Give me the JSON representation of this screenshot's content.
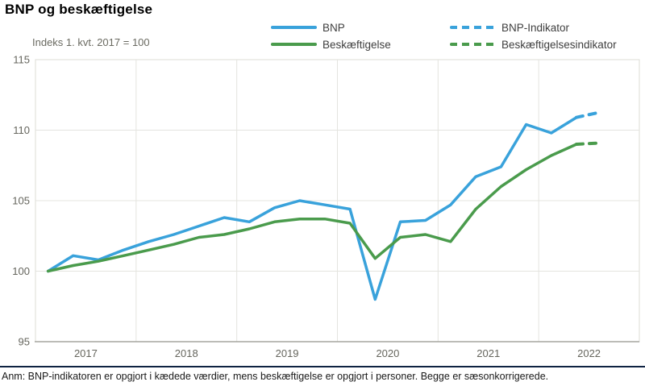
{
  "page": {
    "title": "BNP og beskæftigelse",
    "footnote": "Anm: BNP-indikatoren er opgjort i kædede værdier, mens beskæftigelse er opgjort i personer. Begge er sæsonkorrigerede.",
    "rule_color": "#0f2342",
    "background_color": "#ffffff"
  },
  "chart_data": {
    "type": "line",
    "title": "BNP og beskæftigelse",
    "axis_note": "Indeks 1. kvt. 2017 = 100",
    "x_tick_labels": [
      "2017",
      "2018",
      "2019",
      "2020",
      "2021",
      "2022"
    ],
    "y_ticks": [
      95,
      100,
      105,
      110,
      115
    ],
    "ylim": [
      95,
      115
    ],
    "grid": true,
    "legend_position": "top",
    "categories": [
      "2017K1",
      "2017K2",
      "2017K3",
      "2017K4",
      "2018K1",
      "2018K2",
      "2018K3",
      "2018K4",
      "2019K1",
      "2019K2",
      "2019K3",
      "2019K4",
      "2020K1",
      "2020K2",
      "2020K3",
      "2020K4",
      "2021K1",
      "2021K2",
      "2021K3",
      "2021K4",
      "2022K1",
      "2022K2",
      "2022K3"
    ],
    "series": [
      {
        "name": "BNP",
        "color": "#39a2db",
        "dash": "solid",
        "start_index": 0,
        "values": [
          100.0,
          101.1,
          100.8,
          101.5,
          102.1,
          102.6,
          103.2,
          103.8,
          103.5,
          104.5,
          105.0,
          104.7,
          104.4,
          98.0,
          103.5,
          103.6,
          104.7,
          106.7,
          107.4,
          110.4,
          109.8,
          110.9
        ]
      },
      {
        "name": "Beskæftigelse",
        "color": "#4a9b4c",
        "dash": "solid",
        "start_index": 0,
        "values": [
          100.0,
          100.4,
          100.7,
          101.1,
          101.5,
          101.9,
          102.4,
          102.6,
          103.0,
          103.5,
          103.7,
          103.7,
          103.4,
          100.9,
          102.4,
          102.6,
          102.1,
          104.4,
          106.0,
          107.2,
          108.2,
          109.0
        ]
      },
      {
        "name": "BNP-Indikator",
        "color": "#39a2db",
        "dash": "dashed",
        "start_index": 21,
        "values": [
          110.9,
          111.3
        ]
      },
      {
        "name": "Beskæftigelsesindikator",
        "color": "#4a9b4c",
        "dash": "dashed",
        "start_index": 21,
        "values": [
          109.0,
          109.1
        ]
      }
    ]
  }
}
